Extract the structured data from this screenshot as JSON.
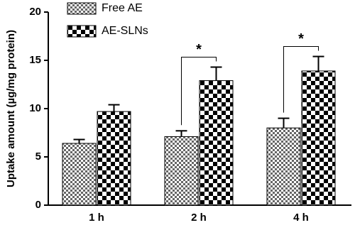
{
  "chart_data": {
    "type": "bar",
    "y_label": "Uptake amount (µg/mg protein)",
    "categories": [
      "1 h",
      "2 h",
      "4 h"
    ],
    "series": [
      {
        "name": "Free AE",
        "color": "#666666",
        "values": [
          6.4,
          7.1,
          8.0
        ],
        "errors": [
          0.4,
          0.6,
          1.0
        ]
      },
      {
        "name": "AE-SLNs",
        "color": "#000000",
        "values": [
          9.7,
          12.9,
          13.9
        ],
        "errors": [
          0.7,
          1.4,
          1.5
        ]
      }
    ],
    "ylim": [
      0,
      20
    ],
    "yticks": [
      0,
      5,
      10,
      15,
      20
    ],
    "legend": "top-left",
    "annotations": [
      {
        "text": "*",
        "category": "2 h"
      },
      {
        "text": "*",
        "category": "4 h"
      }
    ]
  }
}
